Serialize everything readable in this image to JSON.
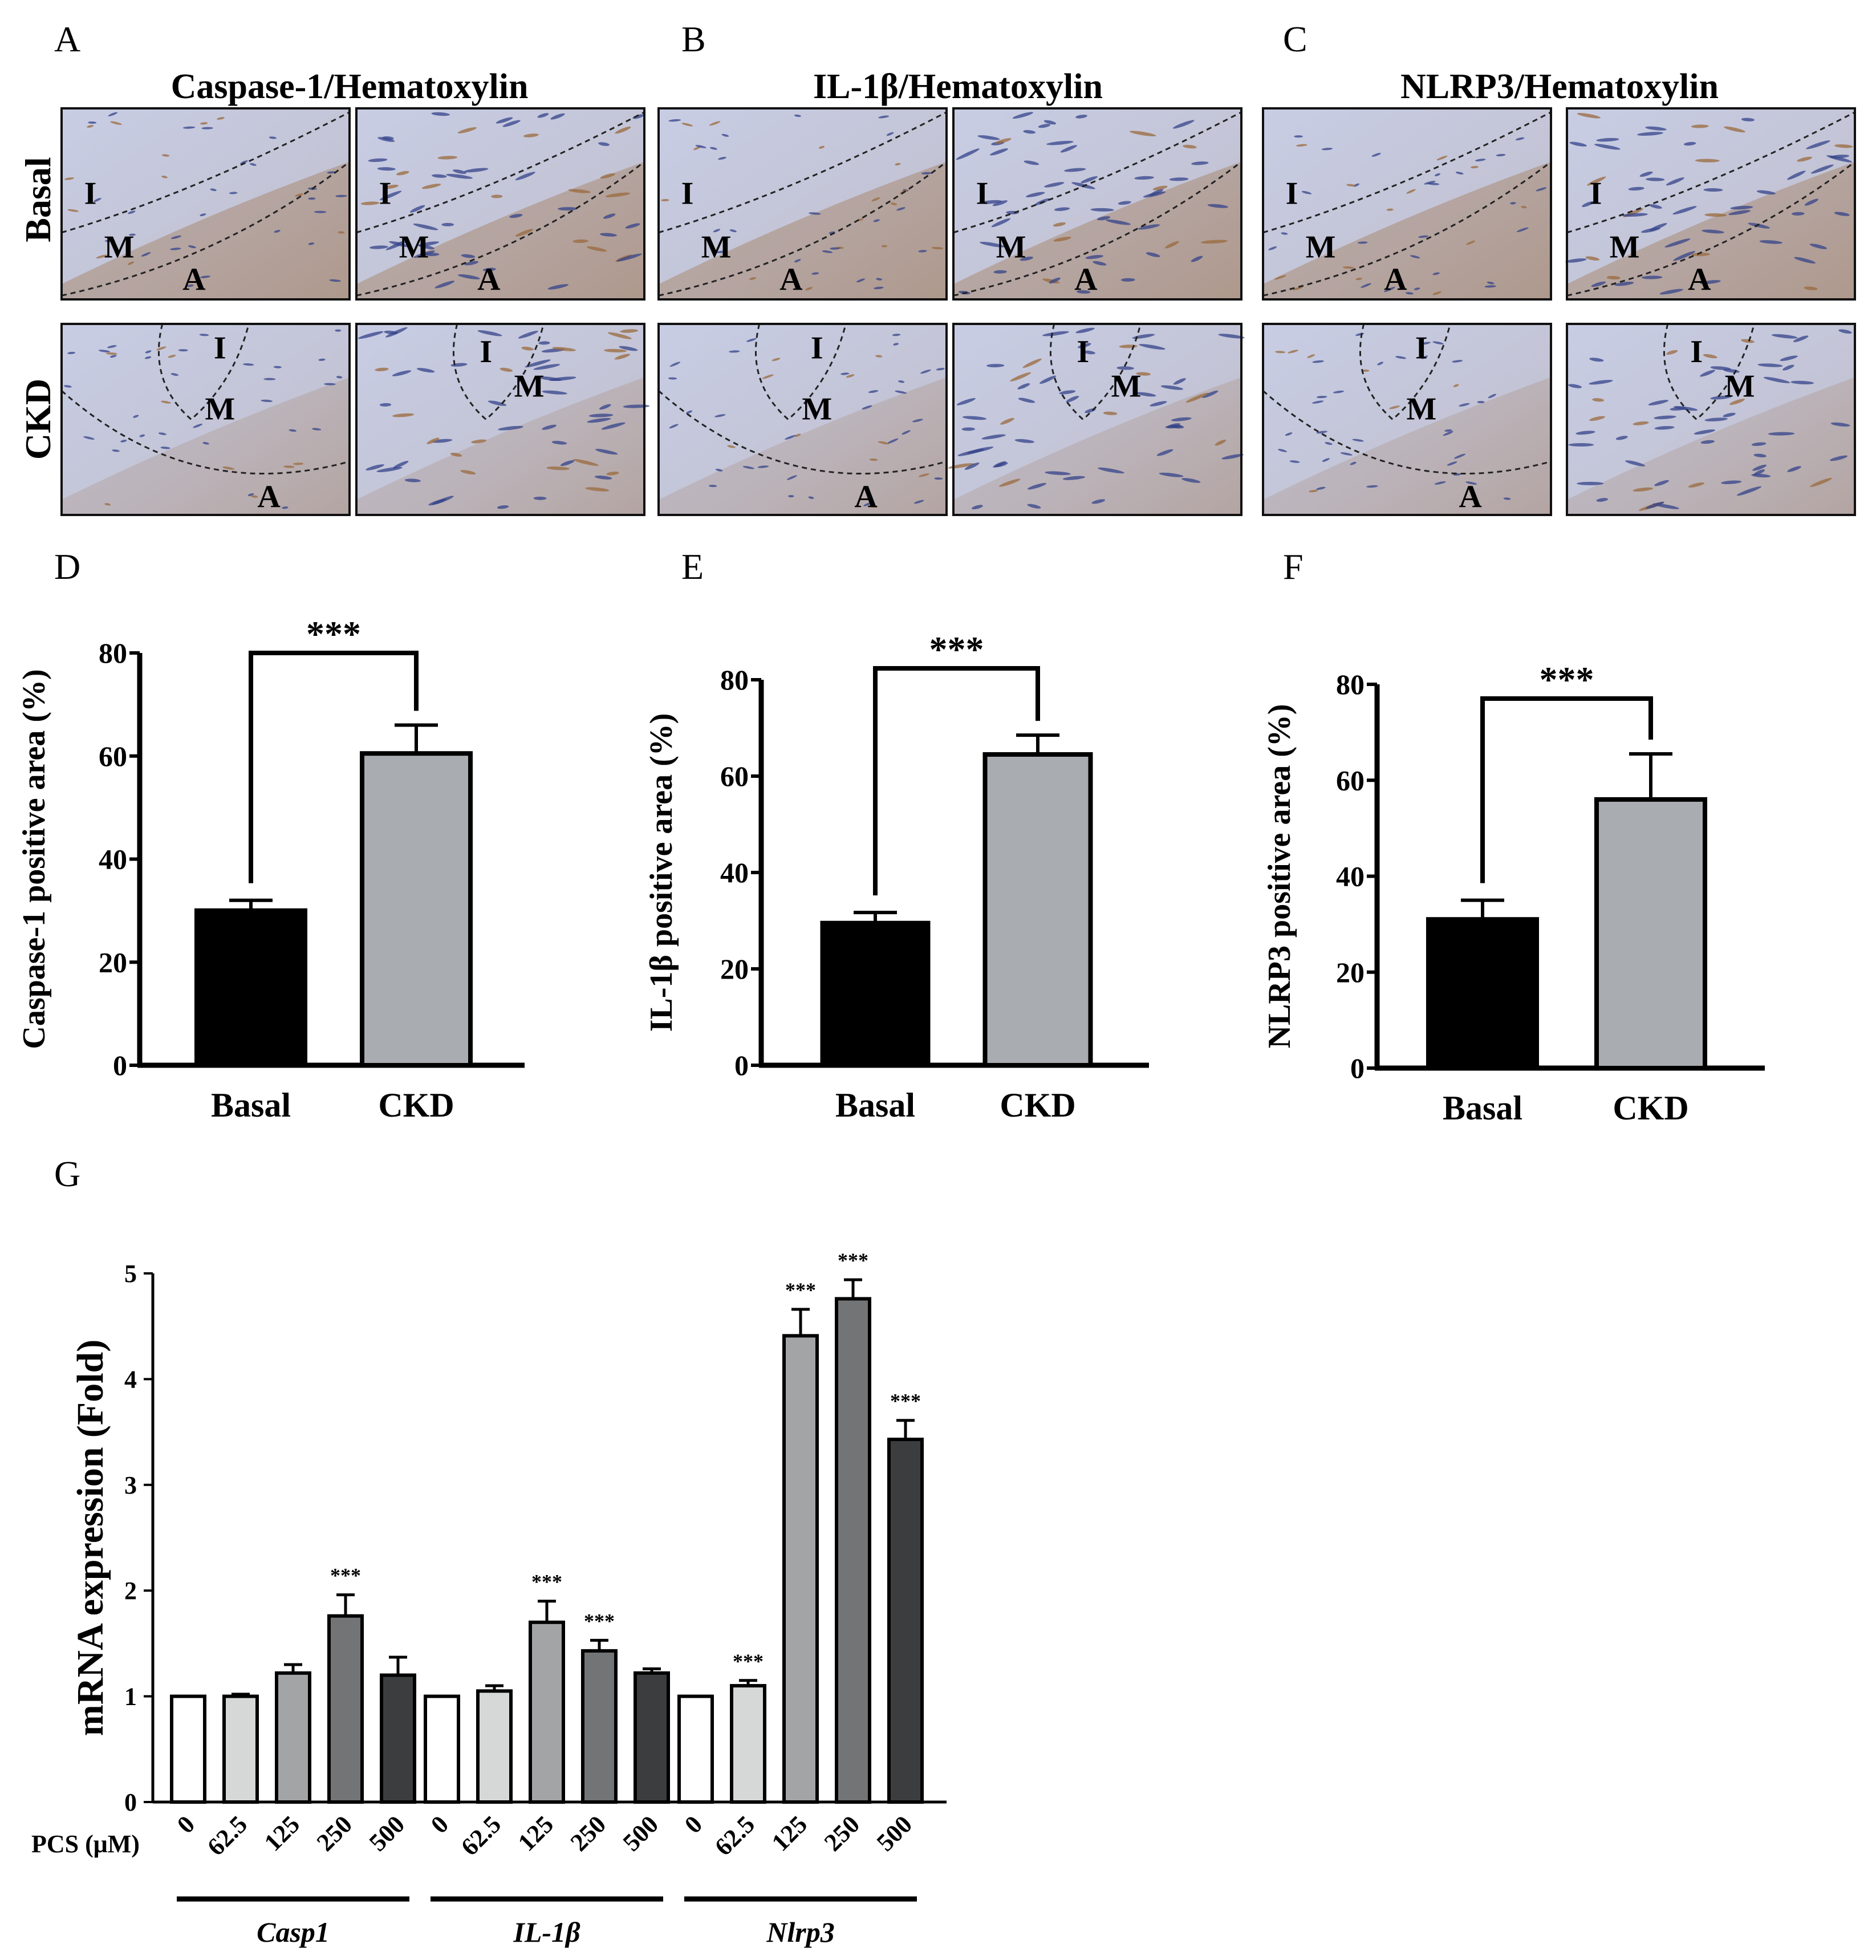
{
  "panels": {
    "A": {
      "letter": "A",
      "title": "Caspase-1/Hematoxylin"
    },
    "B": {
      "letter": "B",
      "title": "IL-1β/Hematoxylin"
    },
    "C": {
      "letter": "C",
      "title": "NLRP3/Hematoxylin"
    },
    "D": {
      "letter": "D"
    },
    "E": {
      "letter": "E"
    },
    "F": {
      "letter": "F"
    },
    "G": {
      "letter": "G"
    }
  },
  "rows": {
    "basal": "Basal",
    "ckd": "CKD"
  },
  "micrographs": [
    {
      "panel": "A",
      "row": "Basal",
      "view": "low",
      "labels": [
        "I",
        "M",
        "A"
      ]
    },
    {
      "panel": "A",
      "row": "Basal",
      "view": "high",
      "labels": [
        "I",
        "M",
        "A"
      ]
    },
    {
      "panel": "A",
      "row": "CKD",
      "view": "low",
      "labels": [
        "I",
        "M",
        "A"
      ]
    },
    {
      "panel": "A",
      "row": "CKD",
      "view": "high",
      "labels": [
        "I",
        "M"
      ]
    },
    {
      "panel": "B",
      "row": "Basal",
      "view": "low",
      "labels": [
        "I",
        "M",
        "A"
      ]
    },
    {
      "panel": "B",
      "row": "Basal",
      "view": "high",
      "labels": [
        "I",
        "M",
        "A"
      ]
    },
    {
      "panel": "B",
      "row": "CKD",
      "view": "low",
      "labels": [
        "I",
        "M",
        "A"
      ]
    },
    {
      "panel": "B",
      "row": "CKD",
      "view": "high",
      "labels": [
        "I",
        "M"
      ]
    },
    {
      "panel": "C",
      "row": "Basal",
      "view": "low",
      "labels": [
        "I",
        "M",
        "A"
      ]
    },
    {
      "panel": "C",
      "row": "Basal",
      "view": "high",
      "labels": [
        "I",
        "M",
        "A"
      ]
    },
    {
      "panel": "C",
      "row": "CKD",
      "view": "low",
      "labels": [
        "I",
        "M",
        "A"
      ]
    },
    {
      "panel": "C",
      "row": "CKD",
      "view": "high",
      "labels": [
        "I",
        "M"
      ]
    }
  ],
  "colors": {
    "tissue": "#c9cde0",
    "brown": "#9a6a3c",
    "nuclei": "#34438a",
    "basal_bar": "#000000",
    "ckd_bar": "#a9acb0",
    "g_conc_colors": [
      "#ffffff",
      "#d6d8d8",
      "#a2a4a6",
      "#727476",
      "#3b3d3f"
    ]
  },
  "chart_data": [
    {
      "panel": "D",
      "type": "bar",
      "categories": [
        "Basal",
        "CKD"
      ],
      "values": [
        30,
        60.5
      ],
      "errors": [
        2,
        5.5
      ],
      "ylabel": "Caspase-1 positive area (%)",
      "ylim": [
        0,
        80
      ],
      "yticks": [
        0,
        20,
        40,
        60,
        80
      ],
      "significance": "***"
    },
    {
      "panel": "E",
      "type": "bar",
      "categories": [
        "Basal",
        "CKD"
      ],
      "values": [
        29.5,
        64.5
      ],
      "errors": [
        2.2,
        4
      ],
      "ylabel": "IL-1β positive area (%)",
      "ylim": [
        0,
        80
      ],
      "yticks": [
        0,
        20,
        40,
        60,
        80
      ],
      "significance": "***"
    },
    {
      "panel": "F",
      "type": "bar",
      "categories": [
        "Basal",
        "CKD"
      ],
      "values": [
        31,
        56
      ],
      "errors": [
        4,
        9.5
      ],
      "ylabel": "NLRP3 positive area (%)",
      "ylim": [
        0,
        80
      ],
      "yticks": [
        0,
        20,
        40,
        60,
        80
      ],
      "significance": "***"
    },
    {
      "panel": "G",
      "type": "bar",
      "ylabel": "mRNA expression (Fold)",
      "ylim": [
        0,
        5
      ],
      "yticks": [
        0,
        1,
        2,
        3,
        4,
        5
      ],
      "x_title": "PCS (μM)",
      "concentrations": [
        "0",
        "62.5",
        "125",
        "250",
        "500"
      ],
      "groups": [
        {
          "name": "Casp1",
          "values": [
            1,
            1,
            1.22,
            1.76,
            1.2
          ],
          "errors": [
            0,
            0.02,
            0.08,
            0.2,
            0.17
          ],
          "sig": [
            "",
            "",
            "",
            "***",
            ""
          ]
        },
        {
          "name": "IL-1β",
          "values": [
            1,
            1.05,
            1.7,
            1.43,
            1.22
          ],
          "errors": [
            0,
            0.05,
            0.2,
            0.1,
            0.04
          ],
          "sig": [
            "",
            "",
            "***",
            "***",
            ""
          ]
        },
        {
          "name": "Nlrp3",
          "values": [
            1,
            1.1,
            4.41,
            4.76,
            3.43
          ],
          "errors": [
            0,
            0.05,
            0.25,
            0.18,
            0.18
          ],
          "sig": [
            "",
            "***",
            "***",
            "***",
            "***"
          ]
        }
      ]
    }
  ]
}
